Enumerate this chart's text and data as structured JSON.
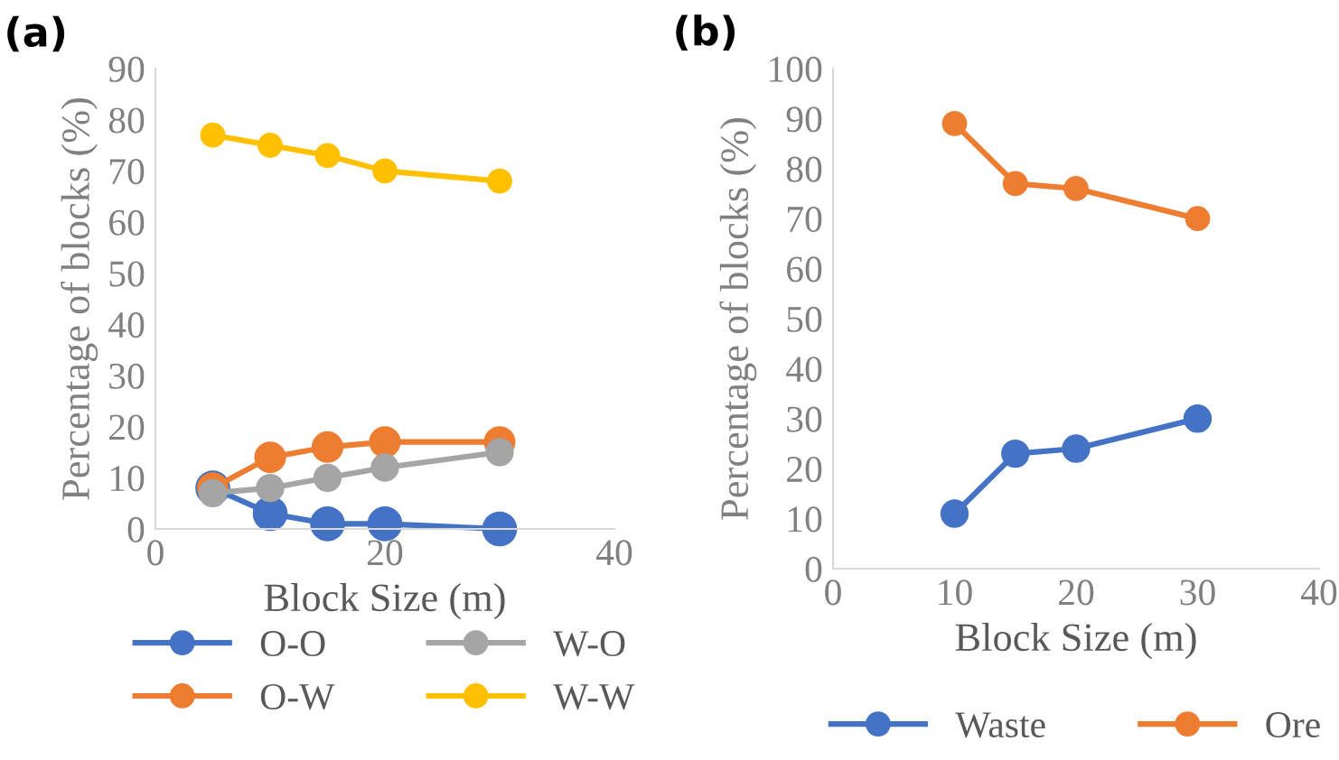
{
  "chart_data": [
    {
      "type": "line",
      "title": "(a)",
      "xlabel": "Block Size (m)",
      "ylabel": "Percentage of blocks (%)",
      "x": [
        5,
        10,
        15,
        20,
        30
      ],
      "series": [
        {
          "name": "O-O",
          "color": "#4472c4",
          "values": [
            8,
            3,
            1,
            1,
            0
          ]
        },
        {
          "name": "O-W",
          "color": "#ed7d31",
          "values": [
            8,
            14,
            16,
            17,
            17
          ]
        },
        {
          "name": "W-O",
          "color": "#a5a5a5",
          "values": [
            7,
            8,
            10,
            12,
            15
          ]
        },
        {
          "name": "W-W",
          "color": "#ffc000",
          "values": [
            77,
            75,
            73,
            70,
            68
          ]
        }
      ],
      "xlim": [
        0,
        40
      ],
      "xticks": [
        0,
        20,
        40
      ],
      "ylim": [
        0,
        90
      ],
      "yticks": [
        0,
        10,
        20,
        30,
        40,
        50,
        60,
        70,
        80,
        90
      ],
      "grid": false,
      "legend": "bottom",
      "marker": "circle",
      "line_style": "solid"
    },
    {
      "type": "line",
      "title": "(b)",
      "xlabel": "Block Size (m)",
      "ylabel": "Percentage of blocks (%)",
      "x": [
        10,
        15,
        20,
        30
      ],
      "series": [
        {
          "name": "Waste",
          "color": "#4472c4",
          "values": [
            11,
            23,
            24,
            30
          ]
        },
        {
          "name": "Ore",
          "color": "#ed7d31",
          "values": [
            89,
            77,
            76,
            70
          ]
        }
      ],
      "xlim": [
        0,
        40
      ],
      "xticks": [
        0,
        10,
        20,
        30,
        40
      ],
      "ylim": [
        0,
        100
      ],
      "yticks": [
        0,
        10,
        20,
        30,
        40,
        50,
        60,
        70,
        80,
        90,
        100
      ],
      "grid": false,
      "legend": "bottom",
      "marker": "circle",
      "line_style": "solid"
    }
  ]
}
